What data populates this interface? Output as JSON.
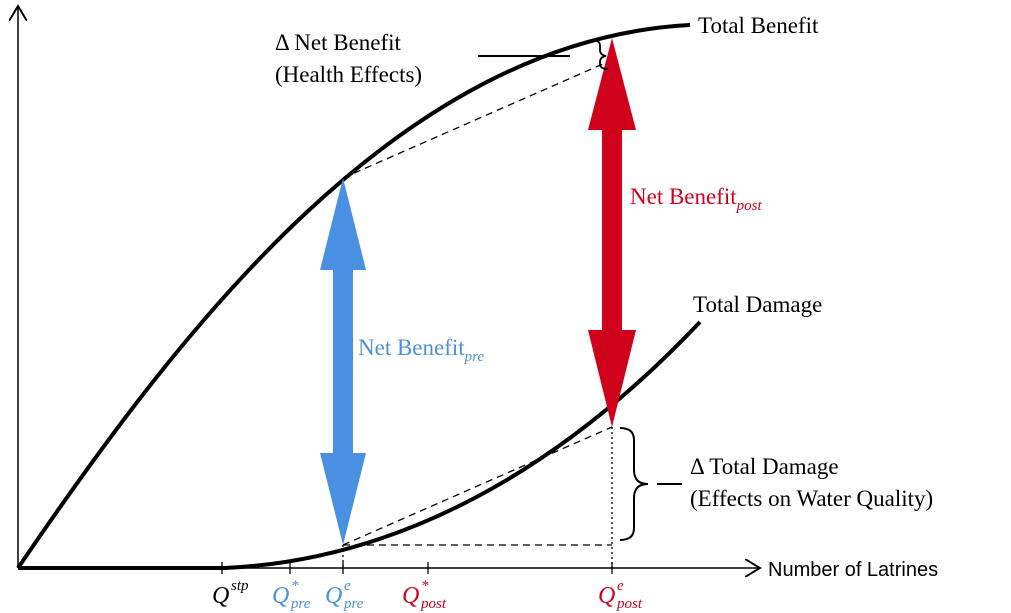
{
  "curves": {
    "total_benefit": "Total Benefit",
    "total_damage": "Total Damage"
  },
  "annotations": {
    "delta_net_benefit": [
      "Δ Net Benefit",
      "(Health Effects)"
    ],
    "delta_total_damage": [
      "Δ Total Damage",
      "(Effects on Water Quality)"
    ],
    "net_benefit_pre": {
      "text": "Net Benefit",
      "sub": "pre"
    },
    "net_benefit_post": {
      "text": "Net Benefit",
      "sub": "post"
    }
  },
  "x_axis_label": "Number of  Latrines",
  "ticks": [
    {
      "base": "Q",
      "sup": "stp"
    },
    {
      "base": "Q",
      "sup": "*",
      "sub": "pre"
    },
    {
      "base": "Q",
      "sup": "e",
      "sub": "pre"
    },
    {
      "base": "Q",
      "sup": "*",
      "sub": "post"
    },
    {
      "base": "Q",
      "sup": "e",
      "sub": "post"
    }
  ]
}
